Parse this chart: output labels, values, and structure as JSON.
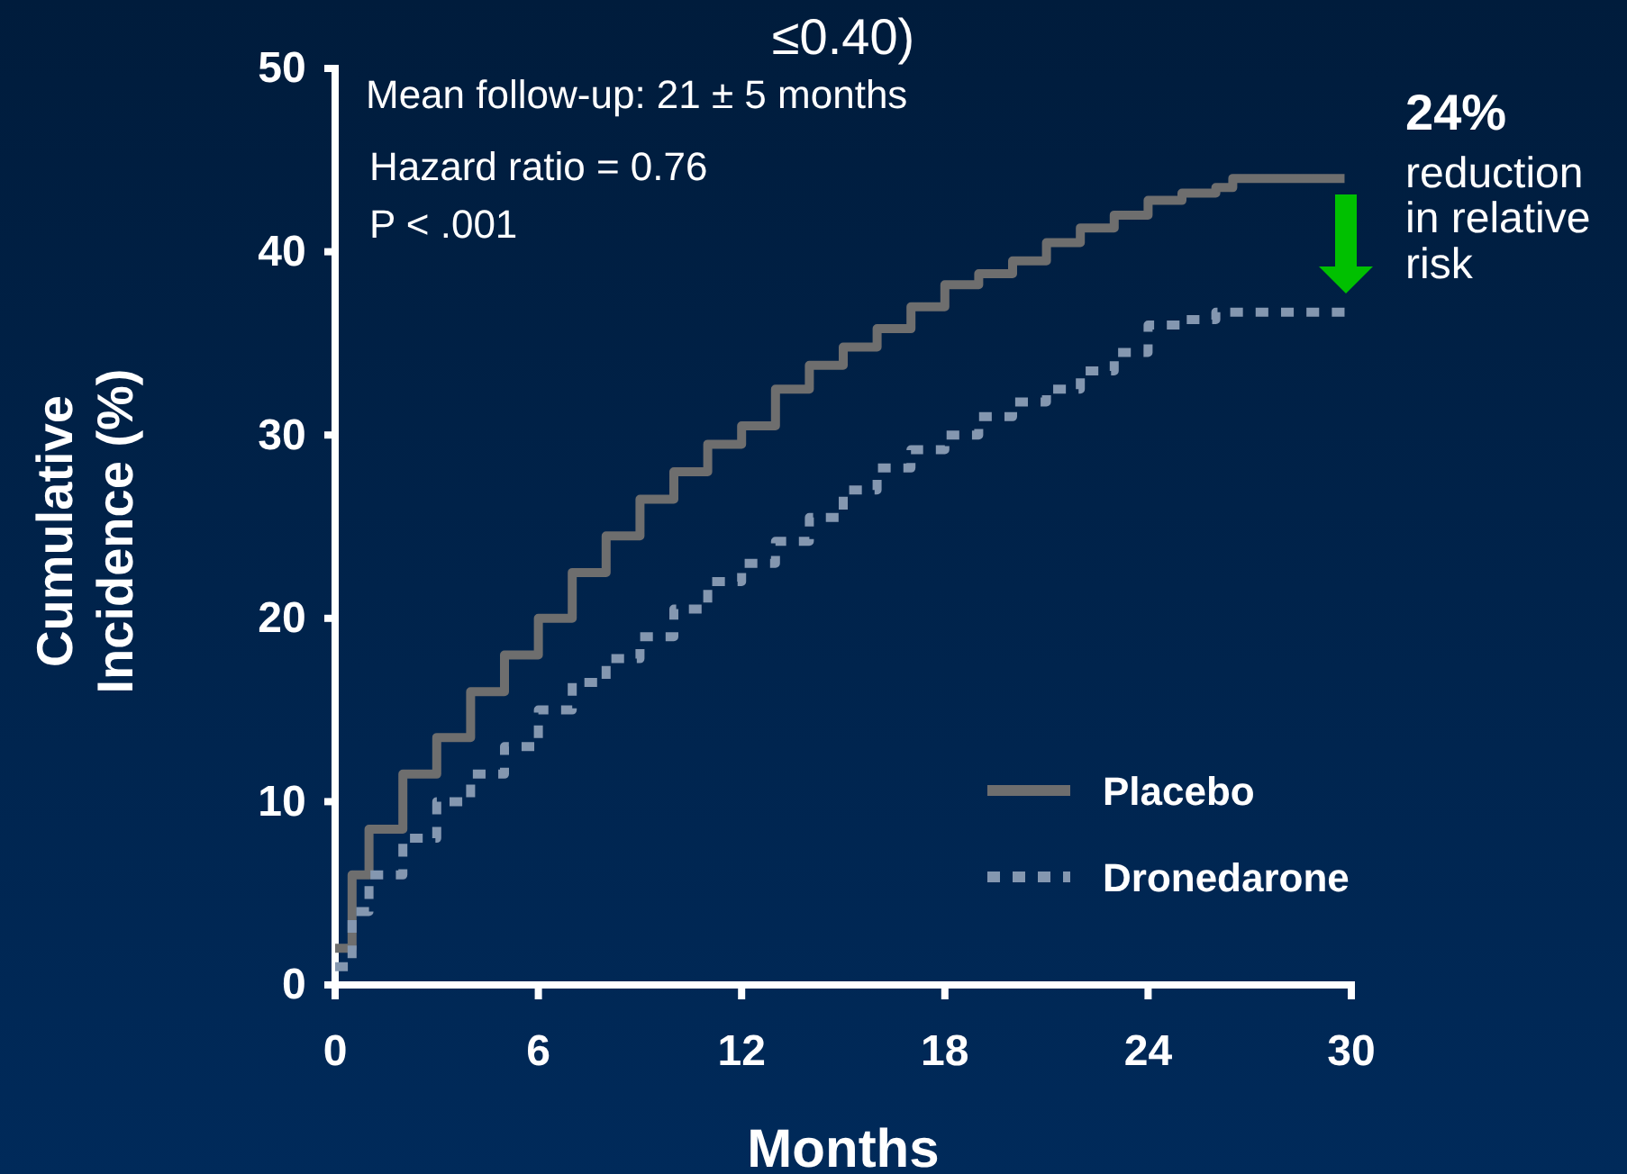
{
  "chart_data": {
    "type": "step",
    "title": "≤0.40)",
    "xlabel": "Months",
    "ylabel": "Cumulative Incidence (%)",
    "xlim": [
      0,
      30
    ],
    "xticks": [
      0,
      6,
      12,
      18,
      24,
      30
    ],
    "ylim": [
      0,
      50
    ],
    "yticks": [
      0,
      10,
      20,
      30,
      40,
      50
    ],
    "grid": false,
    "legend": "bottom right",
    "annotations": [
      "Mean follow-up: 21 ± 5 months",
      "Hazard ratio = 0.76",
      "P < .001",
      "24%",
      "reduction in relative risk"
    ],
    "series": [
      {
        "name": "Placebo",
        "color": "#6e6e6e",
        "line_style": "solid",
        "x": [
          0,
          0.5,
          1,
          2,
          3,
          4,
          5,
          6,
          7,
          8,
          9,
          10,
          11,
          12,
          13,
          14,
          15,
          16,
          17,
          18,
          19,
          20,
          21,
          22,
          23,
          24,
          25,
          26,
          26.5,
          29.8
        ],
        "values": [
          2,
          6,
          8.5,
          11.5,
          13.5,
          16,
          18,
          20,
          22.5,
          24.5,
          26.5,
          28,
          29.5,
          30.5,
          32.5,
          33.8,
          34.8,
          35.8,
          37,
          38.2,
          38.8,
          39.5,
          40.5,
          41.3,
          42,
          42.8,
          43.2,
          43.5,
          44,
          44
        ]
      },
      {
        "name": "Dronedarone",
        "color": "#8497b0",
        "line_style": "dotted",
        "x": [
          0,
          0.5,
          1,
          2,
          3,
          4,
          5,
          6,
          7,
          8,
          9,
          10,
          11,
          12,
          13,
          14,
          15,
          16,
          17,
          18,
          19,
          20,
          21,
          22,
          23,
          24,
          25,
          26,
          29.8
        ],
        "values": [
          1,
          4,
          6,
          8,
          10,
          11.5,
          13,
          15,
          16.5,
          17.8,
          19,
          20.5,
          22,
          23,
          24.2,
          25.5,
          27,
          28.2,
          29.2,
          30,
          31,
          31.8,
          32.5,
          33.5,
          34.5,
          36,
          36.3,
          36.7,
          36.7
        ]
      }
    ]
  }
}
